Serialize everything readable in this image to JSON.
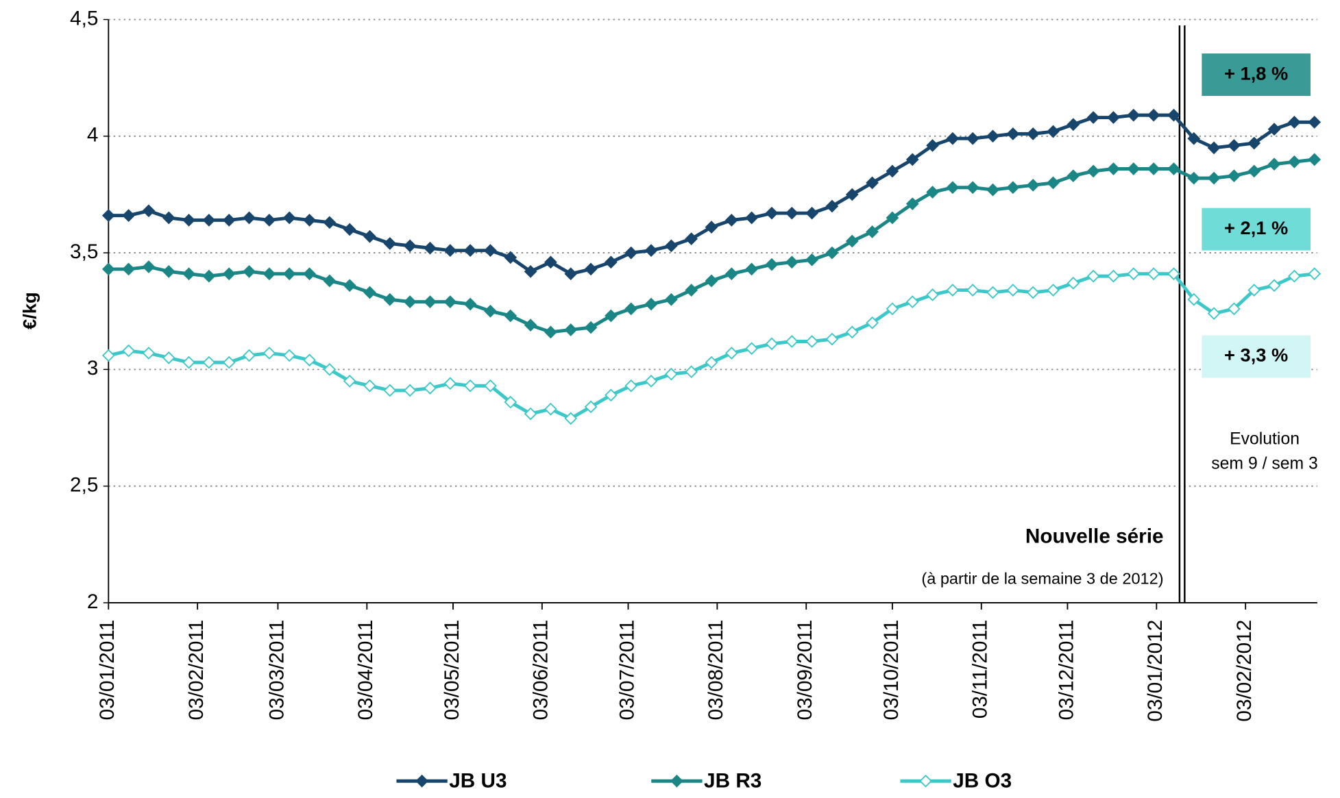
{
  "chart_data": {
    "type": "line",
    "y_label": "€/kg",
    "x": [
      "2011-01-03",
      "2011-01-10",
      "2011-01-17",
      "2011-01-24",
      "2011-01-31",
      "2011-02-07",
      "2011-02-14",
      "2011-02-21",
      "2011-02-28",
      "2011-03-07",
      "2011-03-14",
      "2011-03-21",
      "2011-03-28",
      "2011-04-04",
      "2011-04-11",
      "2011-04-18",
      "2011-04-25",
      "2011-05-02",
      "2011-05-09",
      "2011-05-16",
      "2011-05-23",
      "2011-05-30",
      "2011-06-06",
      "2011-06-13",
      "2011-06-20",
      "2011-06-27",
      "2011-07-04",
      "2011-07-11",
      "2011-07-18",
      "2011-07-25",
      "2011-08-01",
      "2011-08-08",
      "2011-08-15",
      "2011-08-22",
      "2011-08-29",
      "2011-09-05",
      "2011-09-12",
      "2011-09-19",
      "2011-09-26",
      "2011-10-03",
      "2011-10-10",
      "2011-10-17",
      "2011-10-24",
      "2011-10-31",
      "2011-11-07",
      "2011-11-14",
      "2011-11-21",
      "2011-11-28",
      "2011-12-05",
      "2011-12-12",
      "2011-12-19",
      "2011-12-26",
      "2012-01-02",
      "2012-01-09",
      "2012-01-16",
      "2012-01-23",
      "2012-01-30",
      "2012-02-06",
      "2012-02-13",
      "2012-02-20",
      "2012-02-27"
    ],
    "series": [
      {
        "name": "JB U3",
        "color": "#17456b",
        "marker_fill": "#17456b",
        "values": [
          3.66,
          3.66,
          3.68,
          3.65,
          3.64,
          3.64,
          3.64,
          3.65,
          3.64,
          3.65,
          3.64,
          3.63,
          3.6,
          3.57,
          3.54,
          3.53,
          3.52,
          3.51,
          3.51,
          3.51,
          3.48,
          3.42,
          3.46,
          3.41,
          3.43,
          3.46,
          3.5,
          3.51,
          3.53,
          3.56,
          3.61,
          3.64,
          3.65,
          3.67,
          3.67,
          3.67,
          3.7,
          3.75,
          3.8,
          3.85,
          3.9,
          3.96,
          3.99,
          3.99,
          4.0,
          4.01,
          4.01,
          4.02,
          4.05,
          4.08,
          4.08,
          4.09,
          4.09,
          4.09,
          3.99,
          3.95,
          3.96,
          3.97,
          4.03,
          4.06,
          4.06
        ]
      },
      {
        "name": "JB R3",
        "color": "#1a8686",
        "marker_fill": "#1a8686",
        "values": [
          3.43,
          3.43,
          3.44,
          3.42,
          3.41,
          3.4,
          3.41,
          3.42,
          3.41,
          3.41,
          3.41,
          3.38,
          3.36,
          3.33,
          3.3,
          3.29,
          3.29,
          3.29,
          3.28,
          3.25,
          3.23,
          3.19,
          3.16,
          3.17,
          3.18,
          3.23,
          3.26,
          3.28,
          3.3,
          3.34,
          3.38,
          3.41,
          3.43,
          3.45,
          3.46,
          3.47,
          3.5,
          3.55,
          3.59,
          3.65,
          3.71,
          3.76,
          3.78,
          3.78,
          3.77,
          3.78,
          3.79,
          3.8,
          3.83,
          3.85,
          3.86,
          3.86,
          3.86,
          3.86,
          3.82,
          3.82,
          3.83,
          3.85,
          3.88,
          3.89,
          3.9
        ]
      },
      {
        "name": "JB O3",
        "color": "#3cc8c8",
        "marker_fill": "#ffffff",
        "values": [
          3.06,
          3.08,
          3.07,
          3.05,
          3.03,
          3.03,
          3.03,
          3.06,
          3.07,
          3.06,
          3.04,
          3.0,
          2.95,
          2.93,
          2.91,
          2.91,
          2.92,
          2.94,
          2.93,
          2.93,
          2.86,
          2.81,
          2.83,
          2.79,
          2.84,
          2.89,
          2.93,
          2.95,
          2.98,
          2.99,
          3.03,
          3.07,
          3.09,
          3.11,
          3.12,
          3.12,
          3.13,
          3.16,
          3.2,
          3.26,
          3.29,
          3.32,
          3.34,
          3.34,
          3.33,
          3.34,
          3.33,
          3.34,
          3.37,
          3.4,
          3.4,
          3.41,
          3.41,
          3.41,
          3.3,
          3.24,
          3.26,
          3.34,
          3.36,
          3.4,
          3.41
        ]
      }
    ],
    "xlim": [
      "2011-01-03",
      "2012-02-28"
    ],
    "xticks": [
      {
        "value": "2011-01-03",
        "label": "03/01/2011"
      },
      {
        "value": "2011-02-03",
        "label": "03/02/2011"
      },
      {
        "value": "2011-03-03",
        "label": "03/03/2011"
      },
      {
        "value": "2011-04-03",
        "label": "03/04/2011"
      },
      {
        "value": "2011-05-03",
        "label": "03/05/2011"
      },
      {
        "value": "2011-06-03",
        "label": "03/06/2011"
      },
      {
        "value": "2011-07-03",
        "label": "03/07/2011"
      },
      {
        "value": "2011-08-03",
        "label": "03/08/2011"
      },
      {
        "value": "2011-09-03",
        "label": "03/09/2011"
      },
      {
        "value": "2011-10-03",
        "label": "03/10/2011"
      },
      {
        "value": "2011-11-03",
        "label": "03/11/2011"
      },
      {
        "value": "2011-12-03",
        "label": "03/12/2011"
      },
      {
        "value": "2012-01-03",
        "label": "03/01/2012"
      },
      {
        "value": "2012-02-03",
        "label": "03/02/2012"
      }
    ],
    "ylim": [
      2,
      4.5
    ],
    "yticks": [
      2,
      {
        "value": 2.5,
        "label": "2,5"
      },
      3,
      {
        "value": 3.5,
        "label": "3,5"
      },
      4,
      {
        "value": 4.5,
        "label": "4,5"
      }
    ],
    "grid": true,
    "legend": "bottom",
    "annotations": [
      {
        "text": "+ 1,8 %",
        "color": "#3a9a96"
      },
      {
        "text": "+ 2,1 %",
        "color": "#6fdcd8"
      },
      {
        "text": "+ 3,3 %",
        "color": "#d2f6f6"
      }
    ],
    "evolution_note": [
      "Evolution",
      "sem 9 / sem 3"
    ],
    "new_series_title": "Nouvelle série",
    "new_series_note": "(à partir de la semaine 3 de 2012)"
  }
}
